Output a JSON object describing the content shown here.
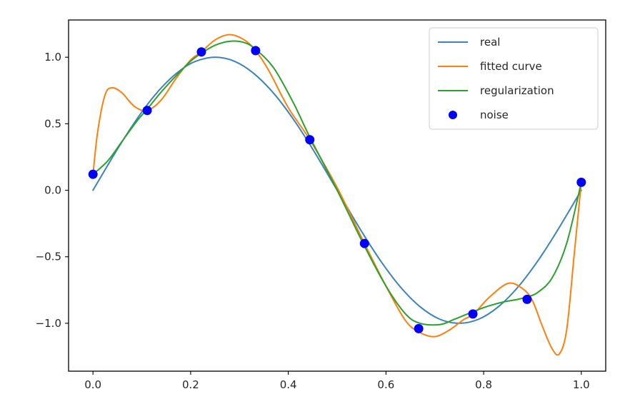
{
  "chart_data": {
    "type": "line",
    "title": "",
    "xlabel": "",
    "ylabel": "",
    "xlim": [
      -0.05,
      1.05
    ],
    "ylim": [
      -1.36,
      1.28
    ],
    "xticks": [
      0.0,
      0.2,
      0.4,
      0.6,
      0.8,
      1.0
    ],
    "xtick_labels": [
      "0.0",
      "0.2",
      "0.4",
      "0.6",
      "0.8",
      "1.0"
    ],
    "yticks": [
      1.0,
      0.5,
      0.0,
      -0.5,
      -1.0
    ],
    "ytick_labels": [
      "1.0",
      "0.5",
      "0.0",
      "−0.5",
      "−1.0"
    ],
    "grid": false,
    "legend_position": "upper right",
    "series": [
      {
        "name": "real",
        "color": "#3b83bd",
        "style": "line",
        "x": [
          0.0,
          0.03,
          0.06,
          0.09,
          0.12,
          0.15,
          0.18,
          0.21,
          0.25,
          0.29,
          0.33,
          0.37,
          0.41,
          0.45,
          0.5,
          0.55,
          0.59,
          0.63,
          0.67,
          0.71,
          0.75,
          0.79,
          0.83,
          0.87,
          0.91,
          0.95,
          1.0
        ],
        "y": [
          0.0,
          0.187,
          0.368,
          0.536,
          0.685,
          0.809,
          0.905,
          0.969,
          1.0,
          0.969,
          0.876,
          0.729,
          0.536,
          0.309,
          0.0,
          -0.309,
          -0.536,
          -0.729,
          -0.876,
          -0.969,
          -1.0,
          -0.969,
          -0.876,
          -0.729,
          -0.536,
          -0.309,
          0.0
        ]
      },
      {
        "name": "fitted curve",
        "color": "#ff7f0e",
        "style": "line",
        "x": [
          0.0,
          0.01,
          0.025,
          0.04,
          0.06,
          0.085,
          0.111,
          0.14,
          0.17,
          0.2,
          0.222,
          0.25,
          0.28,
          0.31,
          0.333,
          0.36,
          0.4,
          0.444,
          0.5,
          0.556,
          0.6,
          0.64,
          0.67,
          0.7,
          0.73,
          0.76,
          0.78,
          0.81,
          0.85,
          0.88,
          0.9,
          0.92,
          0.94,
          0.955,
          0.97,
          0.985,
          1.0
        ],
        "y": [
          0.12,
          0.45,
          0.72,
          0.77,
          0.73,
          0.63,
          0.6,
          0.68,
          0.84,
          0.98,
          1.04,
          1.13,
          1.17,
          1.13,
          1.05,
          0.9,
          0.62,
          0.38,
          0.02,
          -0.4,
          -0.72,
          -0.98,
          -1.07,
          -1.1,
          -1.05,
          -0.97,
          -0.93,
          -0.81,
          -0.7,
          -0.74,
          -0.83,
          -1.02,
          -1.19,
          -1.23,
          -1.05,
          -0.5,
          0.06
        ]
      },
      {
        "name": "regularization",
        "color": "#2ca02c",
        "style": "line",
        "x": [
          0.0,
          0.03,
          0.06,
          0.09,
          0.111,
          0.14,
          0.17,
          0.2,
          0.222,
          0.25,
          0.28,
          0.31,
          0.333,
          0.37,
          0.41,
          0.444,
          0.5,
          0.556,
          0.6,
          0.64,
          0.67,
          0.71,
          0.74,
          0.78,
          0.81,
          0.84,
          0.87,
          0.89,
          0.91,
          0.94,
          0.97,
          1.0
        ],
        "y": [
          0.12,
          0.22,
          0.37,
          0.52,
          0.61,
          0.74,
          0.86,
          0.97,
          1.03,
          1.09,
          1.12,
          1.11,
          1.06,
          0.92,
          0.66,
          0.4,
          0.0,
          -0.42,
          -0.72,
          -0.93,
          -1.0,
          -1.01,
          -0.97,
          -0.91,
          -0.87,
          -0.84,
          -0.82,
          -0.8,
          -0.77,
          -0.66,
          -0.4,
          0.06
        ]
      },
      {
        "name": "noise",
        "color": "#0000ff",
        "style": "markers",
        "x": [
          0.0,
          0.111,
          0.222,
          0.333,
          0.444,
          0.556,
          0.667,
          0.778,
          0.889,
          1.0
        ],
        "y": [
          0.12,
          0.6,
          1.04,
          1.05,
          0.38,
          -0.4,
          -1.04,
          -0.93,
          -0.82,
          0.06
        ]
      }
    ]
  }
}
